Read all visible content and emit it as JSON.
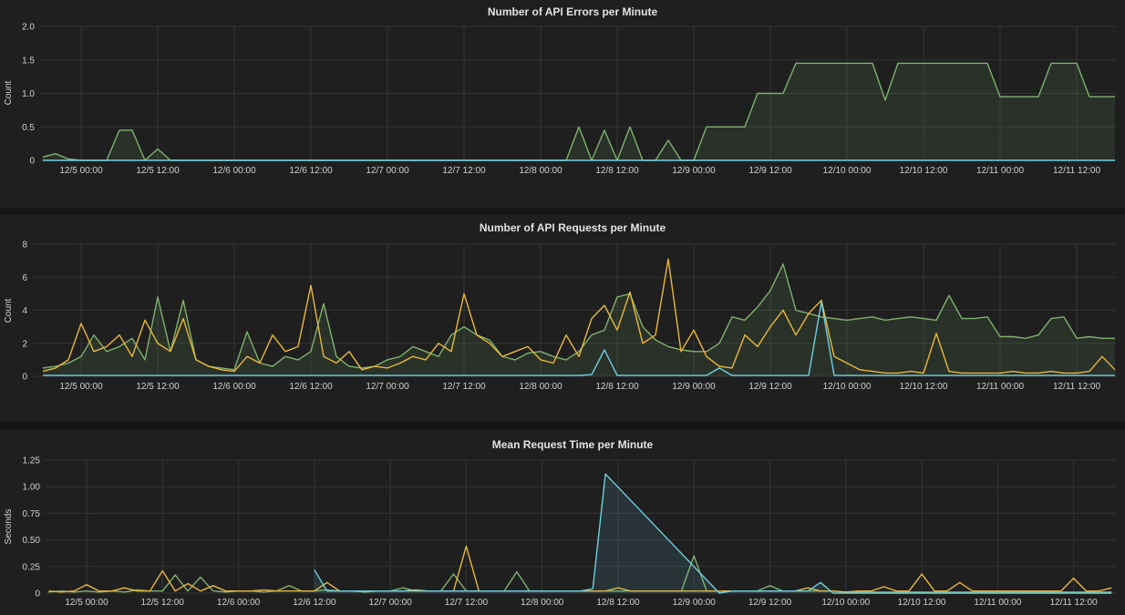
{
  "chart_data": [
    {
      "type": "area",
      "title": "Number of API Errors per Minute",
      "ylabel": "Count",
      "ylim": [
        0,
        2.0
      ],
      "yticks": [
        "0",
        "0.5",
        "1.0",
        "1.5",
        "2.0"
      ],
      "ytick_values": [
        0,
        0.5,
        1.0,
        1.5,
        2.0
      ],
      "xticks": [
        "12/5 00:00",
        "12/5 12:00",
        "12/6 00:00",
        "12/6 12:00",
        "12/7 00:00",
        "12/7 12:00",
        "12/8 00:00",
        "12/8 12:00",
        "12/9 00:00",
        "12/9 12:00",
        "12/10 00:00",
        "12/10 12:00",
        "12/11 00:00",
        "12/11 12:00"
      ],
      "x_start": "12/4 18:00",
      "x_interval_hours": 2,
      "grid": true,
      "legend": "none",
      "series": [
        {
          "color": "#7eb26d",
          "fill": true,
          "values": [
            0.05,
            0.1,
            0.02,
            0,
            0,
            0,
            0.45,
            0.45,
            0,
            0.17,
            0,
            0,
            0,
            0,
            0,
            0,
            0,
            0,
            0,
            0,
            0,
            0,
            0,
            0,
            0,
            0,
            0,
            0,
            0,
            0,
            0,
            0,
            0,
            0,
            0,
            0,
            0,
            0,
            0,
            0,
            0,
            0,
            0.5,
            0,
            0.45,
            0,
            0.5,
            0,
            0,
            0.3,
            0,
            0,
            0.5,
            0.5,
            0.5,
            0.5,
            1.0,
            1.0,
            1.0,
            1.45,
            1.45,
            1.45,
            1.45,
            1.45,
            1.45,
            1.45,
            0.9,
            1.45,
            1.45,
            1.45,
            1.45,
            1.45,
            1.45,
            1.45,
            1.45,
            0.95,
            0.95,
            0.95,
            0.95,
            1.45,
            1.45,
            1.45,
            0.95,
            0.95,
            0.95
          ]
        },
        {
          "color": "#6ed0e0",
          "fill": false,
          "values": [
            0,
            0,
            0,
            0,
            0,
            0,
            0,
            0,
            0,
            0,
            0,
            0,
            0,
            0,
            0,
            0,
            0,
            0,
            0,
            0,
            0,
            0,
            0,
            0,
            0,
            0,
            0,
            0,
            0,
            0,
            0,
            0,
            0,
            0,
            0,
            0,
            0,
            0,
            0,
            0,
            0,
            0,
            0,
            0,
            0,
            0,
            0,
            0,
            0,
            0,
            0,
            0,
            0,
            0,
            0,
            0,
            0,
            0,
            0,
            0,
            0,
            0,
            0,
            0,
            0,
            0,
            0,
            0,
            0,
            0,
            0,
            0,
            0,
            0,
            0,
            0,
            0,
            0,
            0,
            0,
            0,
            0,
            0,
            0,
            0
          ]
        }
      ]
    },
    {
      "type": "line",
      "title": "Number of API Requests per Minute",
      "ylabel": "Count",
      "ylim": [
        0,
        8
      ],
      "yticks": [
        "0",
        "2",
        "4",
        "6",
        "8"
      ],
      "ytick_values": [
        0,
        2,
        4,
        6,
        8
      ],
      "xticks": [
        "12/5 00:00",
        "12/5 12:00",
        "12/6 00:00",
        "12/6 12:00",
        "12/7 00:00",
        "12/7 12:00",
        "12/8 00:00",
        "12/8 12:00",
        "12/9 00:00",
        "12/9 12:00",
        "12/10 00:00",
        "12/10 12:00",
        "12/11 00:00",
        "12/11 12:00"
      ],
      "x_start": "12/4 18:00",
      "x_interval_hours": 2,
      "grid": true,
      "legend": "none",
      "series": [
        {
          "color": "#7eb26d",
          "fill": true,
          "values": [
            0.5,
            0.6,
            0.8,
            1.2,
            2.5,
            1.5,
            1.8,
            2.3,
            1.0,
            4.8,
            1.5,
            4.6,
            1.0,
            0.6,
            0.5,
            0.4,
            2.7,
            0.8,
            0.6,
            1.2,
            1.0,
            1.5,
            4.4,
            1.2,
            0.6,
            0.5,
            0.6,
            1.0,
            1.2,
            1.8,
            1.5,
            1.2,
            2.5,
            3.0,
            2.5,
            2.2,
            1.2,
            1.0,
            1.4,
            1.5,
            1.2,
            1.0,
            1.5,
            2.5,
            2.8,
            4.8,
            5.0,
            3.0,
            2.2,
            1.8,
            1.6,
            1.5,
            1.5,
            2.0,
            3.6,
            3.4,
            4.2,
            5.2,
            6.8,
            4.0,
            3.8,
            3.6,
            3.5,
            3.4,
            3.5,
            3.6,
            3.4,
            3.5,
            3.6,
            3.5,
            3.4,
            4.9,
            3.5,
            3.5,
            3.6,
            2.4,
            2.4,
            2.3,
            2.5,
            3.5,
            3.6,
            2.3,
            2.4,
            2.3,
            2.3
          ]
        },
        {
          "color": "#eab839",
          "fill": false,
          "values": [
            0.3,
            0.5,
            1.0,
            3.2,
            1.5,
            1.8,
            2.5,
            1.2,
            3.4,
            2.0,
            1.5,
            3.5,
            1.0,
            0.6,
            0.4,
            0.3,
            1.2,
            0.8,
            2.5,
            1.5,
            1.8,
            5.5,
            1.2,
            0.8,
            1.5,
            0.4,
            0.6,
            0.5,
            0.8,
            1.2,
            1.0,
            2.0,
            1.5,
            5.0,
            2.5,
            2.0,
            1.2,
            1.5,
            1.8,
            1.0,
            0.8,
            2.5,
            1.2,
            3.5,
            4.3,
            2.8,
            5.1,
            2.0,
            2.5,
            7.1,
            1.5,
            2.8,
            1.2,
            0.6,
            0.5,
            2.5,
            1.8,
            3.0,
            4.0,
            2.5,
            3.8,
            4.6,
            1.2,
            0.8,
            0.4,
            0.3,
            0.2,
            0.2,
            0.3,
            0.2,
            2.6,
            0.3,
            0.2,
            0.2,
            0.2,
            0.2,
            0.3,
            0.2,
            0.2,
            0.3,
            0.2,
            0.2,
            0.3,
            1.2,
            0.4
          ]
        },
        {
          "color": "#6ed0e0",
          "fill": false,
          "values": [
            0.05,
            0.05,
            0.05,
            0.05,
            0.05,
            0.05,
            0.05,
            0.05,
            0.05,
            0.05,
            0.05,
            0.05,
            0.05,
            0.05,
            0.05,
            0.05,
            0.05,
            0.05,
            0.05,
            0.05,
            0.05,
            0.05,
            0.05,
            0.05,
            0.05,
            0.05,
            0.05,
            0.05,
            0.05,
            0.05,
            0.05,
            0.05,
            0.05,
            0.05,
            0.05,
            0.05,
            0.05,
            0.05,
            0.05,
            0.05,
            0.05,
            0.05,
            0.05,
            0.1,
            1.6,
            0.05,
            0.05,
            0.05,
            0.05,
            0.05,
            0.05,
            0.05,
            0.05,
            0.5,
            0.05,
            0.05,
            0.05,
            0.05,
            0.05,
            0.05,
            0.05,
            4.5,
            0.05,
            0.05,
            0.05,
            0.05,
            0.05,
            0.05,
            0.05,
            0.05,
            0.05,
            0.05,
            0.05,
            0.05,
            0.05,
            0.05,
            0.05,
            0.05,
            0.05,
            0.05,
            0.05,
            0.05,
            0.05,
            0.05,
            0.05
          ]
        }
      ]
    },
    {
      "type": "line",
      "title": "Mean Request Time per Minute",
      "ylabel": "Seconds",
      "ylim": [
        0,
        1.25
      ],
      "yticks": [
        "0",
        "0.25",
        "0.50",
        "0.75",
        "1.00",
        "1.25"
      ],
      "ytick_values": [
        0,
        0.25,
        0.5,
        0.75,
        1.0,
        1.25
      ],
      "xticks": [
        "12/5 00:00",
        "12/5 12:00",
        "12/6 00:00",
        "12/6 12:00",
        "12/7 00:00",
        "12/7 12:00",
        "12/8 00:00",
        "12/8 12:00",
        "12/9 00:00",
        "12/9 12:00",
        "12/10 00:00",
        "12/10 12:00",
        "12/11 00:00",
        "12/11 12:00"
      ],
      "x_start": "12/4 18:00",
      "x_interval_hours": 2,
      "grid": true,
      "legend": "none",
      "series": [
        {
          "color": "#7eb26d",
          "fill": false,
          "values": [
            0.01,
            0.02,
            0.01,
            0.02,
            0.01,
            0.02,
            0.01,
            0.03,
            0.02,
            0.02,
            0.17,
            0.02,
            0.15,
            0.02,
            0.01,
            0.02,
            0.02,
            0.01,
            0.02,
            0.07,
            0.02,
            0.02,
            0.03,
            0.02,
            0.02,
            0.01,
            0.02,
            0.02,
            0.05,
            0.02,
            0.02,
            0.02,
            0.18,
            0.02,
            0.02,
            0.02,
            0.02,
            0.2,
            0.02,
            0.02,
            0.02,
            0.02,
            0.02,
            0.02,
            0.02,
            0.02,
            0.02,
            0.02,
            0.02,
            0.02,
            0.02,
            0.35,
            0.02,
            0.02,
            0.02,
            0.02,
            0.02,
            0.07,
            0.02,
            0.02,
            0.02,
            0.02,
            0.02,
            0.01,
            0.01,
            0.01,
            0.01,
            0.01,
            0.01,
            0.01,
            0.01,
            0.01,
            0.01,
            0.01,
            0.01,
            0.01,
            0.01,
            0.01,
            0.01,
            0.01,
            0.01,
            0.01,
            0.01,
            0.01,
            0.01
          ]
        },
        {
          "color": "#eab839",
          "fill": false,
          "values": [
            0.02,
            0.01,
            0.02,
            0.08,
            0.02,
            0.02,
            0.05,
            0.02,
            0.02,
            0.21,
            0.02,
            0.09,
            0.02,
            0.07,
            0.02,
            0.02,
            0.02,
            0.03,
            0.02,
            0.02,
            0.02,
            0.02,
            0.1,
            0.02,
            0.02,
            0.02,
            0.02,
            0.02,
            0.02,
            0.03,
            0.02,
            0.02,
            0.02,
            0.44,
            0.02,
            0.02,
            0.02,
            0.02,
            0.02,
            0.02,
            0.02,
            0.02,
            0.02,
            0.02,
            0.02,
            0.05,
            0.02,
            0.02,
            0.02,
            0.02,
            0.02,
            0.02,
            0.02,
            0.02,
            0.02,
            0.02,
            0.02,
            0.02,
            0.02,
            0.02,
            0.05,
            0.02,
            0.02,
            0.01,
            0.02,
            0.02,
            0.06,
            0.02,
            0.02,
            0.18,
            0.02,
            0.02,
            0.1,
            0.02,
            0.02,
            0.02,
            0.02,
            0.02,
            0.02,
            0.02,
            0.02,
            0.14,
            0.02,
            0.02,
            0.05
          ]
        },
        {
          "color": "#6ed0e0",
          "fill": true,
          "values": [
            null,
            null,
            null,
            null,
            null,
            null,
            null,
            null,
            null,
            null,
            null,
            null,
            null,
            null,
            null,
            null,
            null,
            null,
            null,
            null,
            null,
            0.22,
            0.02,
            0.02,
            0.02,
            0.02,
            0.02,
            0.02,
            0.02,
            0.02,
            0.02,
            0.02,
            0.02,
            0.02,
            0.02,
            0.02,
            0.02,
            0.02,
            0.02,
            0.02,
            0.02,
            0.02,
            0.02,
            0.04,
            1.12,
            null,
            null,
            null,
            null,
            null,
            null,
            null,
            null,
            0.0,
            0.02,
            0.02,
            0.02,
            0.02,
            0.02,
            0.02,
            0.02,
            0.1,
            0.0,
            0.0,
            0.0,
            0.0,
            0.0,
            0.0,
            0.0,
            0.0,
            0.0,
            0.0,
            0.0,
            0.0,
            0.0,
            0.0,
            0.0,
            0.0,
            0.0,
            0.0,
            0.0,
            0.0,
            0.0,
            0.0,
            0.0
          ]
        }
      ]
    }
  ]
}
